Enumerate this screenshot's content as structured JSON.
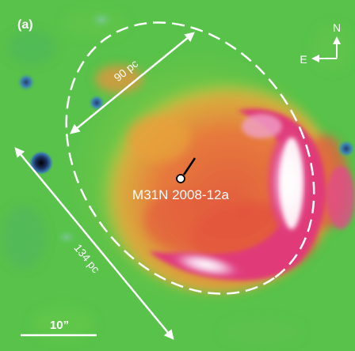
{
  "panel": {
    "label": "(a)"
  },
  "compass": {
    "north": "N",
    "east": "E"
  },
  "annotations": {
    "nova_label": "M31N 2008-12a",
    "minor_axis_label": "90 pc",
    "major_axis_label": "134 pc"
  },
  "scalebar": {
    "label": "10”"
  },
  "colors": {
    "background": "#58c24a",
    "shell_outer": "#e9a23c",
    "shell_inner": "#e2543e",
    "rim": "#e03a78",
    "rim_bright": "#ffffff",
    "annotation": "#ffffff"
  }
}
